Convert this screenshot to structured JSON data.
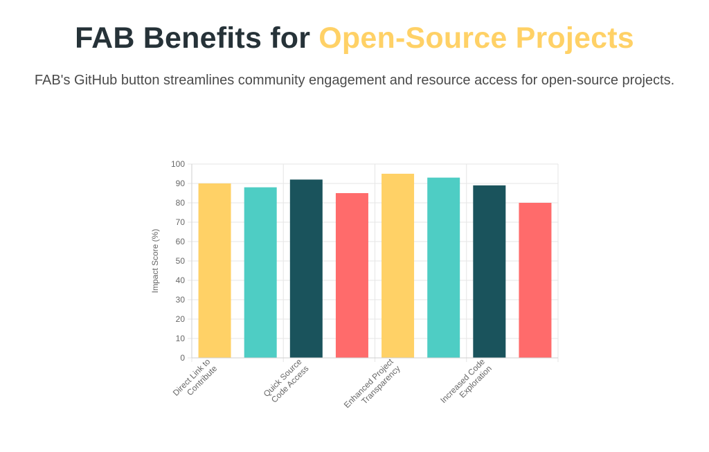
{
  "header": {
    "title_main": "FAB Benefits for ",
    "title_accent": "Open-Source Projects",
    "subtitle": "FAB's GitHub button streamlines community engagement and resource access for open-source projects."
  },
  "colors": {
    "accent_yellow": "#FFD166",
    "teal": "#4ECDC4",
    "dark_teal": "#1A535C",
    "coral": "#FF6B6B",
    "title_dark": "#263238"
  },
  "chart_data": {
    "type": "bar",
    "categories": [
      "Direct Link to Contribute",
      "",
      "Quick Source Code Access",
      "",
      "Enhanced Project Transparency",
      "",
      "Increased Code Exploration",
      ""
    ],
    "category_label_lines": [
      [
        "Direct Link to",
        "Contribute"
      ],
      [],
      [
        "Quick Source",
        "Code Access"
      ],
      [],
      [
        "Enhanced Project",
        "Transparency"
      ],
      [],
      [
        "Increased Code",
        "Exploration"
      ],
      []
    ],
    "values": [
      90,
      88,
      92,
      85,
      95,
      93,
      89,
      80
    ],
    "bar_colors": [
      "#FFD166",
      "#4ECDC4",
      "#1A535C",
      "#FF6B6B",
      "#FFD166",
      "#4ECDC4",
      "#1A535C",
      "#FF6B6B"
    ],
    "ylabel": "Impact Score (%)",
    "xlabel": "",
    "ylim": [
      0,
      100
    ],
    "yticks": [
      0,
      10,
      20,
      30,
      40,
      50,
      60,
      70,
      80,
      90,
      100
    ],
    "grid": true,
    "legend": "none"
  }
}
